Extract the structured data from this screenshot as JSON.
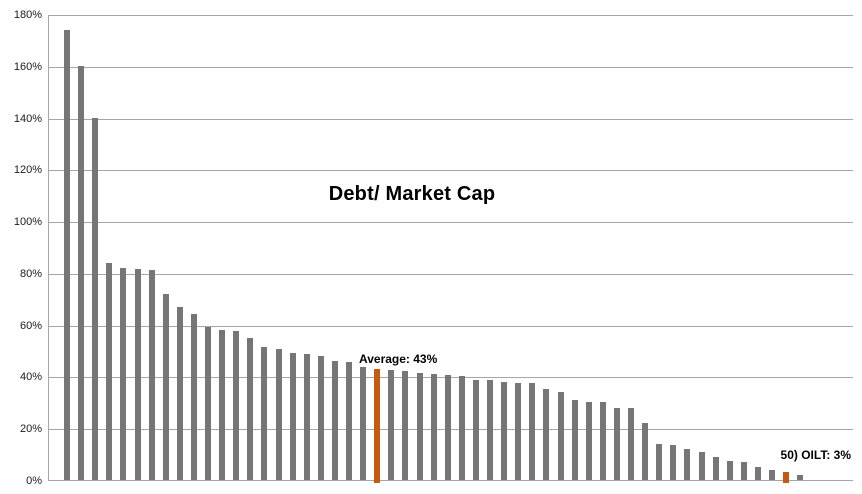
{
  "chart_data": {
    "type": "bar",
    "title": "Debt/ Market Cap",
    "xlabel": "",
    "ylabel": "",
    "ylim": [
      0,
      180
    ],
    "ytick_step": 20,
    "yticks": [
      "0%",
      "20%",
      "40%",
      "60%",
      "80%",
      "100%",
      "120%",
      "140%",
      "160%",
      "180%"
    ],
    "grid": true,
    "legend": false,
    "x_axis_labels": "none",
    "values": [
      174,
      160,
      140,
      84,
      82,
      81.5,
      81,
      72,
      67,
      64,
      59,
      58,
      57.5,
      55,
      51.5,
      50.5,
      49,
      48.5,
      48,
      46,
      45.5,
      43.5,
      43,
      42.5,
      42,
      41.5,
      41,
      40.5,
      40,
      38.5,
      38.5,
      38,
      37.5,
      37.5,
      35,
      34,
      31,
      30,
      30,
      28,
      28,
      22,
      14,
      13.5,
      12,
      11,
      9,
      7.5,
      7,
      5,
      4,
      3,
      2
    ],
    "highlight_indices": [
      22,
      51
    ],
    "annotations": [
      {
        "text": "Average: 43%",
        "target_index": 22,
        "target_value": 43
      },
      {
        "text": "50) OILT: 3%",
        "target_index": 51,
        "target_value": 3
      }
    ],
    "colors": {
      "bar": "#767676",
      "highlight": "#C55A11",
      "gridline": "#A6A6A6",
      "axis_text": "#1A1A1A",
      "title_text": "#000000"
    }
  }
}
